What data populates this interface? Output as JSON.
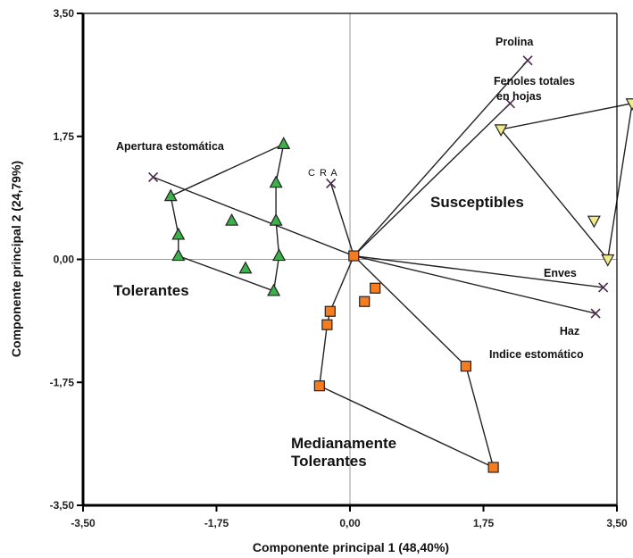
{
  "chart_data": {
    "type": "scatter",
    "subtype": "pca-biplot",
    "xlabel": "Componente principal 1 (48,40%)",
    "ylabel": "Componente principal 2 (24,79%)",
    "xlim": [
      -3.5,
      3.5
    ],
    "ylim": [
      -3.5,
      3.5
    ],
    "xticks": [
      -3.5,
      -1.75,
      0,
      1.75,
      3.5
    ],
    "yticks": [
      -3.5,
      -1.75,
      0,
      1.75,
      3.5
    ],
    "xtick_labels": [
      "-3,50",
      "-1,75",
      "0,00",
      "1,75",
      "3,50"
    ],
    "ytick_labels": [
      "-3,50",
      "-1,75",
      "0,00",
      "1,75",
      "3,50"
    ],
    "reference_lines": {
      "x0": true,
      "y0": true
    },
    "grid": false,
    "origin": [
      0.05,
      0.05
    ],
    "vectors": [
      {
        "label": "Prolina",
        "x": 2.33,
        "y": 2.83
      },
      {
        "label": "",
        "x": 2.1,
        "y": 2.22
      },
      {
        "label": "Apertura estomática",
        "x": -2.58,
        "y": 1.17
      },
      {
        "label": "C R A",
        "x": -0.25,
        "y": 1.08
      },
      {
        "label": "Enves",
        "x": 3.32,
        "y": -0.4
      },
      {
        "label": "Haz",
        "x": 3.22,
        "y": -0.77
      }
    ],
    "variable_labels": [
      {
        "text": "Prolina"
      },
      {
        "text": "Fenoles totales"
      },
      {
        "text": "en hojas"
      },
      {
        "text": "Apertura estomática"
      },
      {
        "text": "C R A"
      },
      {
        "text": "Enves"
      },
      {
        "text": "Haz"
      },
      {
        "text": "Indice estomático"
      }
    ],
    "series": [
      {
        "name": "Tolerantes",
        "marker": "triangle-up",
        "color": "#3cb04a",
        "points": [
          [
            -0.87,
            1.64
          ],
          [
            -2.35,
            0.9
          ],
          [
            -2.25,
            0.35
          ],
          [
            -2.25,
            0.05
          ],
          [
            -1.55,
            0.55
          ],
          [
            -0.97,
            1.09
          ],
          [
            -0.97,
            0.55
          ],
          [
            -0.93,
            0.05
          ],
          [
            -1.37,
            -0.13
          ],
          [
            -1.0,
            -0.45
          ]
        ],
        "hull": [
          [
            -0.87,
            1.64
          ],
          [
            -0.97,
            1.09
          ],
          [
            -0.97,
            0.55
          ],
          [
            -0.93,
            0.05
          ],
          [
            -1.0,
            -0.45
          ],
          [
            -2.25,
            0.05
          ],
          [
            -2.25,
            0.35
          ],
          [
            -2.35,
            0.9
          ]
        ]
      },
      {
        "name": "Susceptibles",
        "marker": "triangle-down",
        "color": "#f0ec8a",
        "points": [
          [
            3.7,
            2.22
          ],
          [
            1.98,
            1.85
          ],
          [
            3.2,
            0.55
          ],
          [
            3.38,
            0.0
          ]
        ],
        "hull": [
          [
            3.7,
            2.22
          ],
          [
            3.38,
            0.0
          ],
          [
            1.98,
            1.85
          ]
        ]
      },
      {
        "name": "Medianamente Tolerantes",
        "marker": "square",
        "color": "#f57c1f",
        "points": [
          [
            0.05,
            0.05
          ],
          [
            0.33,
            -0.41
          ],
          [
            0.19,
            -0.6
          ],
          [
            -0.26,
            -0.74
          ],
          [
            -0.3,
            -0.93
          ],
          [
            -0.4,
            -1.8
          ],
          [
            1.52,
            -1.52
          ],
          [
            1.88,
            -2.96
          ]
        ],
        "hull": [
          [
            0.05,
            0.05
          ],
          [
            1.52,
            -1.52
          ],
          [
            1.88,
            -2.96
          ],
          [
            -0.4,
            -1.8
          ],
          [
            -0.3,
            -0.93
          ],
          [
            -0.26,
            -0.74
          ]
        ]
      }
    ],
    "group_labels": [
      {
        "text": "Tolerantes"
      },
      {
        "text": "Susceptibles"
      },
      {
        "lines": [
          "Medianamente",
          "Tolerantes"
        ]
      }
    ]
  }
}
